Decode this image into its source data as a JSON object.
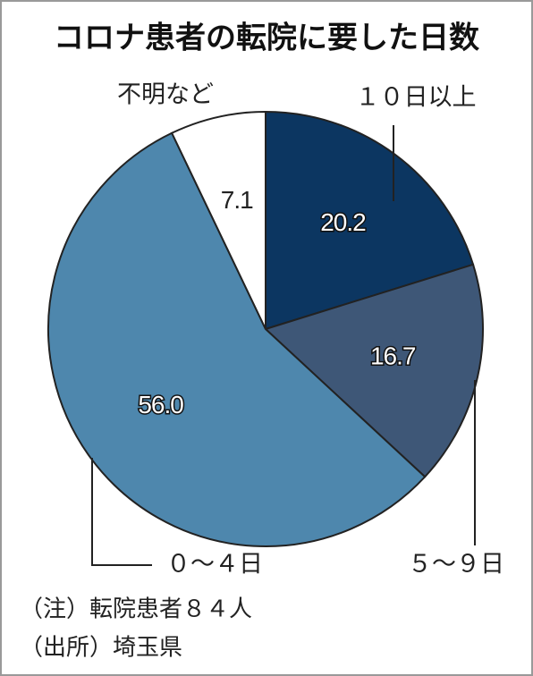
{
  "chart_data": {
    "type": "pie",
    "title": "コロナ患者の転院に要した日数",
    "categories": [
      "１０日以上",
      "５～９日",
      "０～４日",
      "不明など"
    ],
    "values": [
      20.2,
      16.7,
      56.0,
      7.1
    ],
    "value_labels": [
      "20.2",
      "16.7",
      "56.0",
      "7.1"
    ],
    "colors": [
      "#0c3661",
      "#3e5777",
      "#4e87ad",
      "#ffffff"
    ],
    "notes": [
      "（注）転院患者８４人",
      "（出所）埼玉県"
    ]
  }
}
